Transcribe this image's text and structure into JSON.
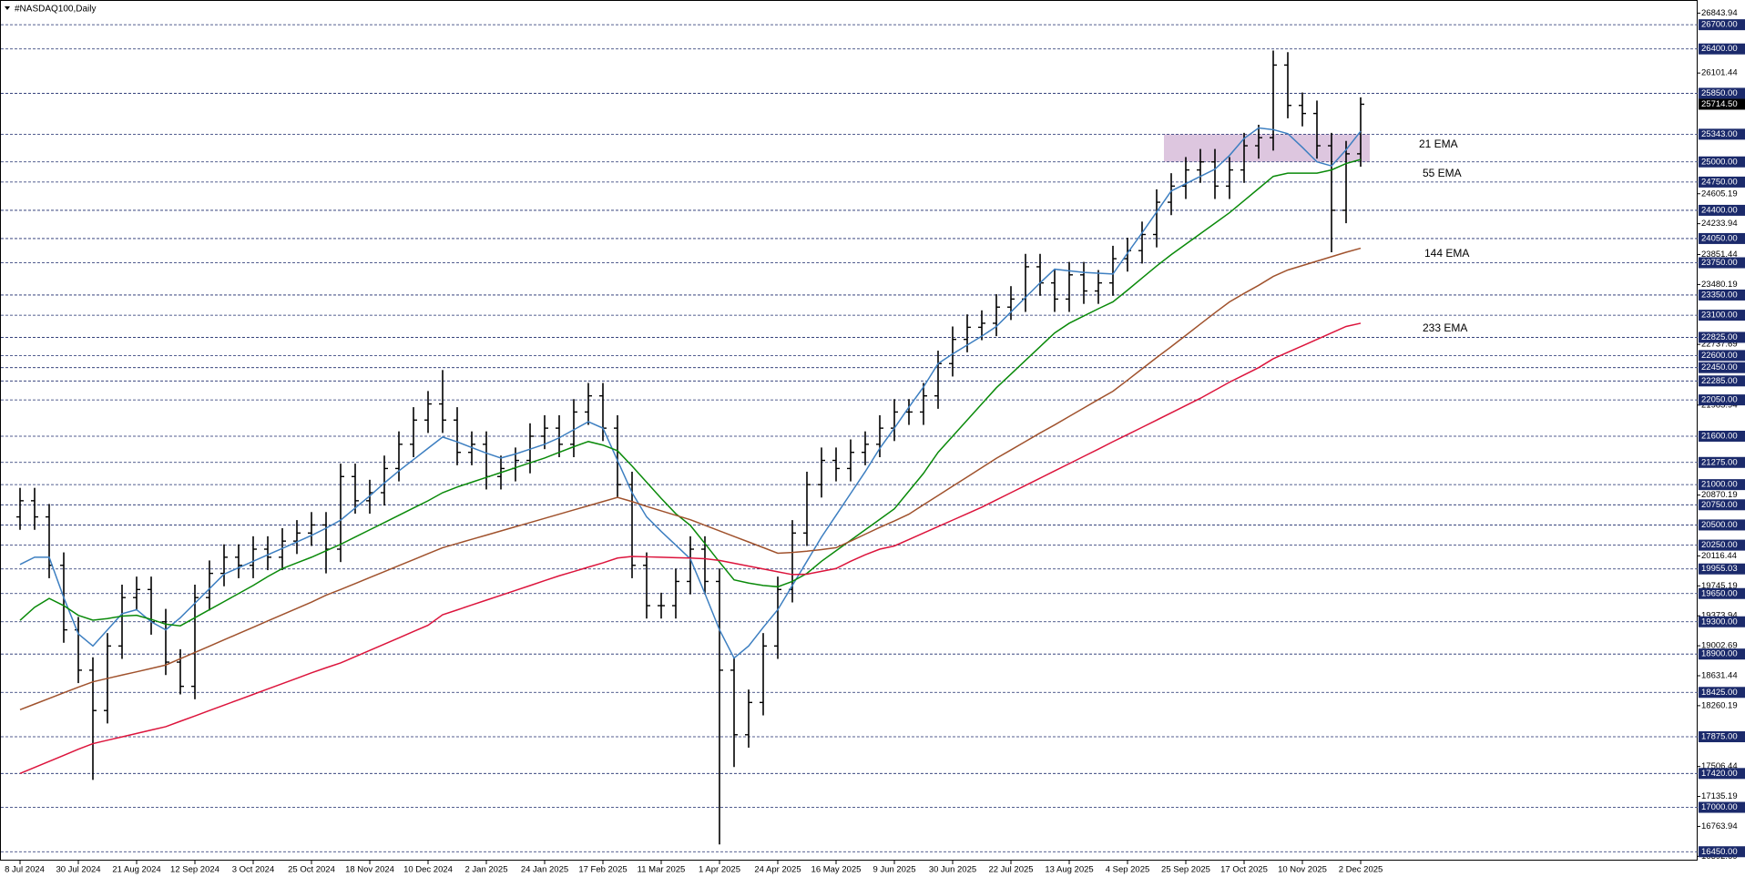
{
  "chart_data": {
    "type": "candlestick",
    "title": "#NASDAQ100,Daily",
    "categories": [
      "8 Jul 2024",
      null,
      null,
      null,
      "30 Jul 2024",
      null,
      null,
      null,
      "21 Aug 2024",
      null,
      null,
      null,
      "12 Sep 2024",
      null,
      null,
      null,
      "3 Oct 2024",
      null,
      null,
      null,
      "25 Oct 2024",
      null,
      null,
      null,
      "18 Nov 2024",
      null,
      null,
      null,
      "10 Dec 2024",
      null,
      null,
      null,
      "2 Jan 2025",
      null,
      null,
      null,
      "24 Jan 2025",
      null,
      null,
      null,
      "17 Feb 2025",
      null,
      null,
      null,
      "11 Mar 2025",
      null,
      null,
      null,
      "1 Apr 2025",
      null,
      null,
      null,
      "24 Apr 2025",
      null,
      null,
      null,
      "16 May 2025",
      null,
      null,
      null,
      "9 Jun 2025",
      null,
      null,
      null,
      "30 Jun 2025",
      null,
      null,
      null,
      "22 Jul 2025",
      null,
      null,
      null,
      "13 Aug 2025",
      null,
      null,
      null,
      "4 Sep 2025",
      null,
      null,
      null,
      "25 Sep 2025",
      null,
      null,
      null,
      "17 Oct 2025",
      null,
      null,
      null,
      "10 Nov 2025",
      null,
      null,
      null,
      "2 Dec 2025"
    ],
    "candle_color": "#000000",
    "open": [
      20600,
      20800,
      20600,
      20000,
      19200,
      18700,
      18200,
      19000,
      19600,
      19700,
      19300,
      18800,
      18500,
      19600,
      19900,
      20100,
      20000,
      20200,
      20100,
      20300,
      20400,
      20500,
      20200,
      21100,
      20800,
      20900,
      21200,
      21500,
      21800,
      22000,
      21800,
      21400,
      21500,
      21100,
      21200,
      21300,
      21600,
      21700,
      21500,
      21900,
      22100,
      21700,
      21000,
      20000,
      19500,
      19500,
      19800,
      20200,
      19800,
      18700,
      17900,
      18300,
      19000,
      19700,
      20400,
      21000,
      21300,
      21200,
      21400,
      21500,
      21700,
      21900,
      21900,
      22100,
      22500,
      22800,
      22950,
      23000,
      23200,
      23300,
      23700,
      23500,
      23300,
      23600,
      23400,
      23500,
      23800,
      23900,
      24100,
      24500,
      24700,
      24900,
      25000,
      24700,
      24900,
      25200,
      25300,
      26200,
      25700,
      25600,
      25200,
      24400,
      25100
    ],
    "high": [
      20960,
      20960,
      20760,
      20160,
      19360,
      18860,
      19160,
      19760,
      19860,
      19860,
      19460,
      18960,
      19760,
      20060,
      20260,
      20260,
      20360,
      20360,
      20460,
      20560,
      20660,
      20660,
      21260,
      21260,
      21060,
      21360,
      21660,
      21960,
      22160,
      22420,
      21960,
      21660,
      21660,
      21360,
      21460,
      21760,
      21860,
      21860,
      22060,
      22260,
      22260,
      21860,
      21160,
      20160,
      19660,
      19960,
      20360,
      20360,
      19960,
      18860,
      18460,
      19160,
      19860,
      20560,
      21160,
      21460,
      21460,
      21560,
      21660,
      21860,
      22060,
      22060,
      22260,
      22660,
      22960,
      23110,
      23160,
      23360,
      23460,
      23860,
      23860,
      23660,
      23760,
      23760,
      23660,
      23960,
      24060,
      24260,
      24660,
      24860,
      25060,
      25160,
      25160,
      25060,
      25360,
      25460,
      26380,
      26360,
      25860,
      25760,
      25360,
      25260,
      25800
    ],
    "low": [
      20440,
      20440,
      19840,
      19040,
      18540,
      17340,
      18040,
      18840,
      19440,
      19140,
      18640,
      18400,
      18340,
      19440,
      19740,
      19840,
      19840,
      19940,
      19940,
      20140,
      20240,
      19900,
      20040,
      20640,
      20640,
      20740,
      21040,
      21340,
      21640,
      21640,
      21240,
      21240,
      20940,
      20940,
      21040,
      21140,
      21440,
      21340,
      21340,
      21740,
      21540,
      20840,
      19840,
      19340,
      19340,
      19340,
      19640,
      19640,
      16540,
      17500,
      17740,
      18140,
      18840,
      19540,
      20240,
      20840,
      21040,
      21040,
      21240,
      21340,
      21540,
      21740,
      21740,
      21940,
      22340,
      22640,
      22790,
      22840,
      23040,
      23140,
      23340,
      23140,
      23140,
      23240,
      23240,
      23340,
      23640,
      23740,
      23940,
      24340,
      24540,
      24740,
      24540,
      24540,
      24740,
      25040,
      25140,
      25540,
      25440,
      25040,
      23880,
      24240,
      24940
    ],
    "close": [
      20800,
      20600,
      20000,
      19200,
      18700,
      18200,
      19000,
      19600,
      19700,
      19300,
      18800,
      18500,
      19600,
      19900,
      20100,
      20000,
      20200,
      20100,
      20300,
      20400,
      20500,
      20200,
      21100,
      20800,
      20900,
      21200,
      21500,
      21800,
      22000,
      21800,
      21400,
      21500,
      21100,
      21200,
      21300,
      21600,
      21700,
      21500,
      21900,
      22100,
      21700,
      21000,
      20000,
      19500,
      19500,
      19800,
      20200,
      19800,
      18700,
      17900,
      18300,
      19000,
      19700,
      20400,
      21000,
      21300,
      21200,
      21400,
      21500,
      21700,
      21900,
      21900,
      22100,
      22500,
      22800,
      22950,
      23000,
      23200,
      23300,
      23700,
      23500,
      23300,
      23600,
      23400,
      23500,
      23800,
      23900,
      24100,
      24500,
      24700,
      24900,
      25000,
      24700,
      24900,
      25200,
      25300,
      26200,
      25700,
      25600,
      25200,
      24400,
      25100,
      25714.5
    ],
    "series": [
      {
        "name": "21 EMA",
        "color": "#3d7fc1",
        "values": [
          20010,
          20100,
          20100,
          19600,
          19150,
          19000,
          19200,
          19400,
          19450,
          19300,
          19200,
          19350,
          19530,
          19710,
          19890,
          19970,
          20050,
          20130,
          20210,
          20290,
          20370,
          20460,
          20560,
          20710,
          20860,
          21020,
          21170,
          21310,
          21450,
          21590,
          21530,
          21460,
          21390,
          21330,
          21380,
          21440,
          21500,
          21580,
          21680,
          21780,
          21700,
          21300,
          20900,
          20600,
          20420,
          20250,
          20080,
          19650,
          19200,
          18850,
          19000,
          19230,
          19450,
          19750,
          20050,
          20350,
          20620,
          20890,
          21160,
          21450,
          21700,
          21960,
          22210,
          22500,
          22620,
          22730,
          22840,
          22960,
          23140,
          23320,
          23500,
          23670,
          23650,
          23630,
          23620,
          23610,
          23870,
          24120,
          24380,
          24640,
          24730,
          24820,
          24910,
          25080,
          25290,
          25420,
          25400,
          25350,
          25180,
          25000,
          24950,
          25150,
          25380
        ]
      },
      {
        "name": "55 EMA",
        "color": "#0a8a0a",
        "values": [
          19318,
          19480,
          19590,
          19500,
          19380,
          19320,
          19340,
          19370,
          19380,
          19330,
          19270,
          19250,
          19350,
          19450,
          19550,
          19650,
          19750,
          19860,
          19960,
          20030,
          20100,
          20180,
          20260,
          20350,
          20440,
          20530,
          20620,
          20710,
          20800,
          20900,
          20970,
          21030,
          21090,
          21150,
          21210,
          21270,
          21330,
          21400,
          21470,
          21534,
          21490,
          21420,
          21230,
          21030,
          20830,
          20640,
          20495,
          20270,
          20040,
          19820,
          19780,
          19750,
          19734,
          19800,
          19900,
          20050,
          20180,
          20310,
          20440,
          20570,
          20700,
          20920,
          21140,
          21400,
          21600,
          21800,
          22000,
          22200,
          22370,
          22540,
          22710,
          22880,
          23000,
          23090,
          23180,
          23265,
          23410,
          23560,
          23710,
          23850,
          23980,
          24110,
          24240,
          24370,
          24520,
          24670,
          24820,
          24860,
          24860,
          24860,
          24900,
          24980,
          25030
        ]
      },
      {
        "name": "144 EMA",
        "color": "#a0522d",
        "values": [
          18210,
          18280,
          18350,
          18420,
          18490,
          18556,
          18598,
          18640,
          18680,
          18722,
          18764,
          18842,
          18920,
          18998,
          19076,
          19154,
          19232,
          19310,
          19388,
          19466,
          19544,
          19630,
          19700,
          19774,
          19848,
          19922,
          19996,
          20070,
          20144,
          20218,
          20270,
          20322,
          20374,
          20426,
          20478,
          20530,
          20582,
          20634,
          20686,
          20738,
          20790,
          20842,
          20790,
          20730,
          20675,
          20620,
          20565,
          20496,
          20427,
          20358,
          20289,
          20220,
          20150,
          20160,
          20175,
          20195,
          20218,
          20300,
          20385,
          20470,
          20550,
          20634,
          20750,
          20865,
          20980,
          21095,
          21210,
          21326,
          21430,
          21535,
          21640,
          21740,
          21845,
          21950,
          22055,
          22157,
          22295,
          22435,
          22575,
          22710,
          22850,
          22990,
          23130,
          23265,
          23370,
          23470,
          23580,
          23660,
          23715,
          23770,
          23825,
          23880,
          23930
        ]
      },
      {
        "name": "233 EMA",
        "color": "#dc143c",
        "values": [
          17420,
          17495,
          17570,
          17645,
          17720,
          17790,
          17832,
          17874,
          17916,
          17958,
          18000,
          18067,
          18133,
          18200,
          18267,
          18333,
          18400,
          18467,
          18533,
          18600,
          18667,
          18730,
          18790,
          18867,
          18945,
          19023,
          19101,
          19179,
          19257,
          19387,
          19447,
          19508,
          19568,
          19628,
          19689,
          19749,
          19810,
          19870,
          19923,
          19977,
          20030,
          20090,
          20110,
          20105,
          20100,
          20095,
          20090,
          20082,
          20060,
          20025,
          19990,
          19955,
          19920,
          19885,
          19890,
          19925,
          19960,
          20050,
          20130,
          20200,
          20240,
          20320,
          20400,
          20480,
          20560,
          20640,
          20720,
          20810,
          20900,
          20990,
          21080,
          21170,
          21260,
          21350,
          21440,
          21532,
          21620,
          21710,
          21800,
          21890,
          21980,
          22070,
          22170,
          22270,
          22360,
          22450,
          22560,
          22640,
          22720,
          22800,
          22880,
          22960,
          23000
        ]
      }
    ],
    "zone": {
      "ylim": [
        25000,
        25343
      ],
      "color": "#d7bcd9"
    },
    "ylim": [
      16340,
      26950
    ],
    "yticks": [
      26843.94,
      26101.44,
      24605.19,
      24233.94,
      23851.44,
      23480.19,
      22737.69,
      21985.94,
      20870.19,
      20116.44,
      19745.19,
      19373.94,
      19002.69,
      18631.44,
      18260.19,
      17506.44,
      17135.19,
      16763.94,
      16392.69
    ],
    "levels": [
      {
        "value": 26700,
        "label": "26700.00"
      },
      {
        "value": 26400,
        "label": "26400.00"
      },
      {
        "value": 25850,
        "label": "25850.00"
      },
      {
        "value": 25343,
        "label": "25343.00"
      },
      {
        "value": 25000,
        "label": "25000.00"
      },
      {
        "value": 24750,
        "label": "24750.00"
      },
      {
        "value": 24400,
        "label": "24400.00"
      },
      {
        "value": 24050,
        "label": "24050.00"
      },
      {
        "value": 23750,
        "label": "23750.00"
      },
      {
        "value": 23350,
        "label": "23350.00"
      },
      {
        "value": 23100,
        "label": "23100.00"
      },
      {
        "value": 22825,
        "label": "22825.00"
      },
      {
        "value": 22600,
        "label": "22600.00"
      },
      {
        "value": 22450,
        "label": "22450.00"
      },
      {
        "value": 22285,
        "label": "22285.00"
      },
      {
        "value": 22050,
        "label": "22050.00"
      },
      {
        "value": 21600,
        "label": "21600.00"
      },
      {
        "value": 21275,
        "label": "21275.00"
      },
      {
        "value": 21000,
        "label": "21000.00"
      },
      {
        "value": 20750,
        "label": "20750.00"
      },
      {
        "value": 20500,
        "label": "20500.00"
      },
      {
        "value": 20250,
        "label": "20250.00"
      },
      {
        "value": 19955.03,
        "label": "19955.03"
      },
      {
        "value": 19650,
        "label": "19650.00"
      },
      {
        "value": 19300,
        "label": "19300.00"
      },
      {
        "value": 18900,
        "label": "18900.00"
      },
      {
        "value": 18425,
        "label": "18425.00"
      },
      {
        "value": 17875,
        "label": "17875.00"
      },
      {
        "value": 17420,
        "label": "17420.00"
      },
      {
        "value": 17000,
        "label": "17000.00"
      },
      {
        "value": 16450,
        "label": "16450.00"
      }
    ],
    "level_color": "#1b2a6b",
    "last_price": {
      "value": 25714.5,
      "label": "25714.50"
    }
  }
}
